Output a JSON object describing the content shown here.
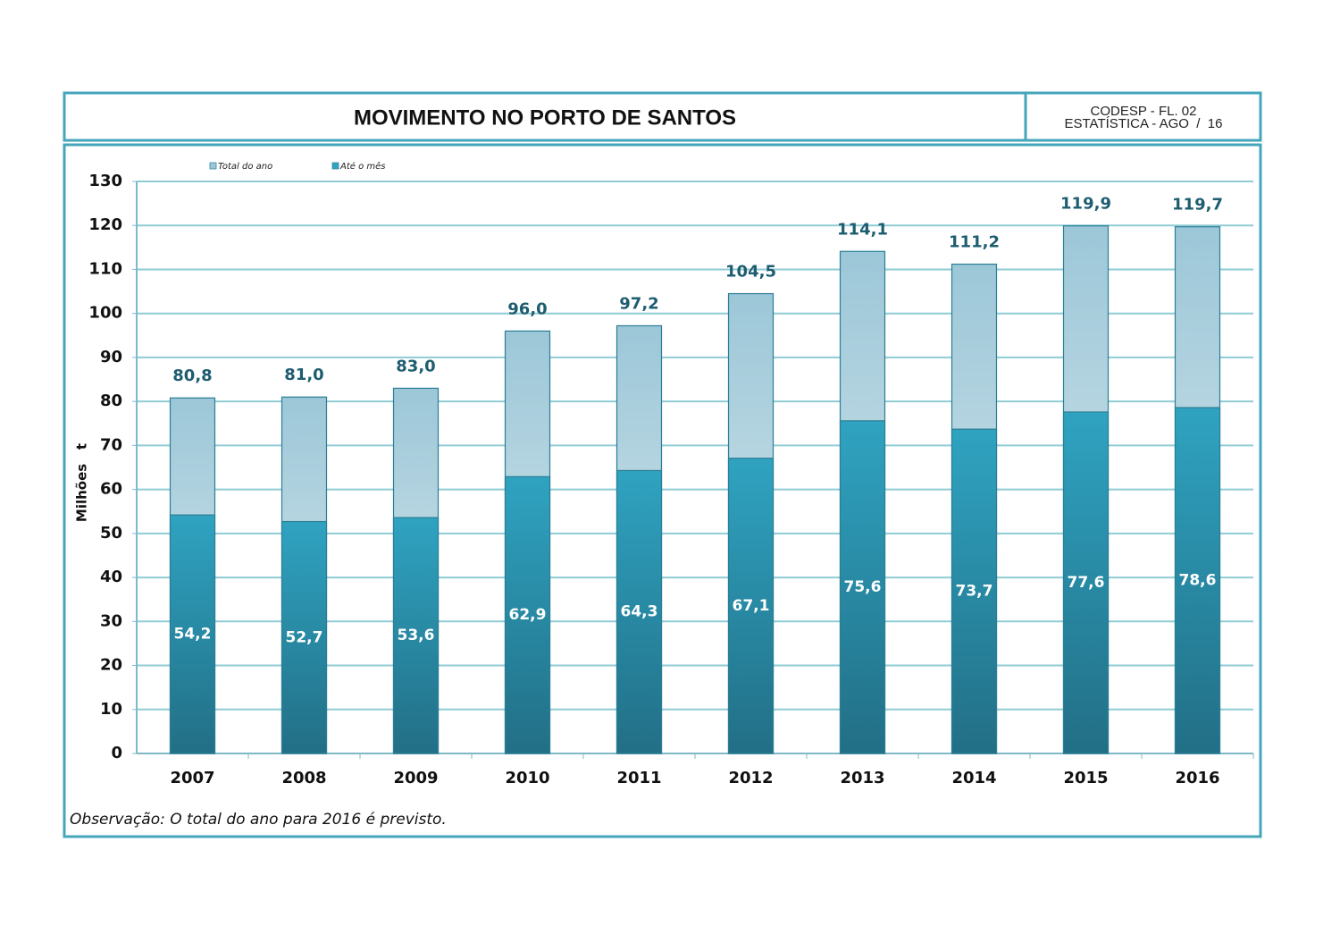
{
  "header": {
    "title": "MOVIMENTO NO PORTO DE SANTOS",
    "code": "CODESP - FL. 02",
    "period": "ESTATÍSTICA - AGO  /  16"
  },
  "note": "Observação: O total do ano para 2016 é previsto.",
  "chart_data": {
    "type": "bar",
    "overlap": true,
    "categories": [
      "2007",
      "2008",
      "2009",
      "2010",
      "2011",
      "2012",
      "2013",
      "2014",
      "2015",
      "2016"
    ],
    "series": [
      {
        "name": "Total do ano",
        "color": "#9cc7d8",
        "values": [
          80.8,
          81.0,
          83.0,
          96.0,
          97.2,
          104.5,
          114.1,
          111.2,
          119.9,
          119.7
        ],
        "value_labels": [
          "80,8",
          "81,0",
          "83,0",
          "96,0",
          "97,2",
          "104,5",
          "114,1",
          "111,2",
          "119,9",
          "119,7"
        ]
      },
      {
        "name": "Até o mês",
        "color": "#2fa3c1",
        "values": [
          54.2,
          52.7,
          53.6,
          62.9,
          64.3,
          67.1,
          75.6,
          73.7,
          77.6,
          78.6
        ],
        "value_labels": [
          "54,2",
          "52,7",
          "53,6",
          "62,9",
          "64,3",
          "67,1",
          "75,6",
          "73,7",
          "77,6",
          "78,6"
        ]
      }
    ],
    "ylabel": "Milhões   t",
    "ylim": [
      0,
      130
    ],
    "yticks": [
      0,
      10,
      20,
      30,
      40,
      50,
      60,
      70,
      80,
      90,
      100,
      110,
      120,
      130
    ],
    "grid": true,
    "legend": "top-left"
  }
}
